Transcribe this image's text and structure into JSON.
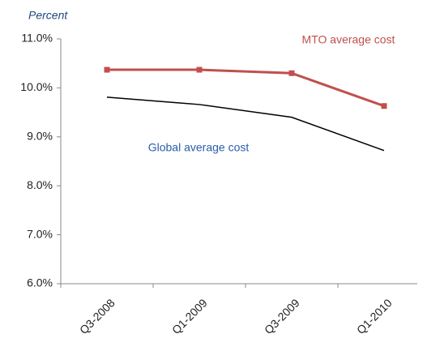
{
  "chart_data": {
    "type": "line",
    "y_axis_label": "Percent",
    "categories": [
      "Q3-2008",
      "Q1-2009",
      "Q3-2009",
      "Q1-2010"
    ],
    "series": [
      {
        "name": "MTO average cost",
        "color": "#c0504d",
        "marker": "square",
        "values": [
          10.37,
          10.37,
          10.3,
          9.63
        ]
      },
      {
        "name": "Global average cost",
        "color": "#000000",
        "values": [
          9.81,
          9.66,
          9.4,
          8.72
        ]
      }
    ],
    "ylim": [
      6,
      11
    ],
    "yticks": [
      {
        "value": 6,
        "label": "6.0%"
      },
      {
        "value": 7,
        "label": "7.0%"
      },
      {
        "value": 8,
        "label": "8.0%"
      },
      {
        "value": 9,
        "label": "9.0%"
      },
      {
        "value": 10,
        "label": "10.0%"
      },
      {
        "value": 11,
        "label": "11.0%"
      }
    ],
    "grid": false
  }
}
